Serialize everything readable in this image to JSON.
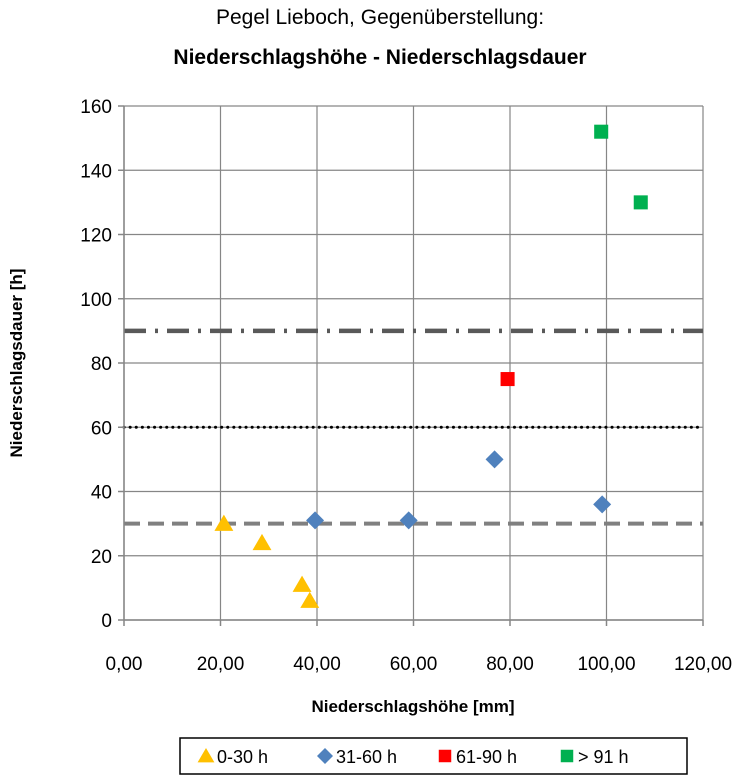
{
  "chart_data": {
    "type": "scatter",
    "title": "Pegel Lieboch, Gegenüberstellung:",
    "subtitle": "Niederschlagshöhe - Niederschlagsdauer",
    "xlabel": "Niederschlagshöhe [mm]",
    "ylabel": "Niederschlagsdauer [h]",
    "xlim": [
      0,
      120
    ],
    "ylim": [
      0,
      160
    ],
    "x_ticks": [
      "0,00",
      "20,00",
      "40,00",
      "60,00",
      "80,00",
      "100,00",
      "120,00"
    ],
    "y_ticks": [
      "0",
      "20",
      "40",
      "60",
      "80",
      "100",
      "120",
      "140",
      "160"
    ],
    "grid": true,
    "legend_position": "bottom",
    "series": [
      {
        "name": "0-30 h",
        "marker": "triangle",
        "color": "#FFC000",
        "points": [
          [
            20.7,
            30
          ],
          [
            28.6,
            24
          ],
          [
            36.9,
            11
          ],
          [
            38.5,
            6
          ]
        ]
      },
      {
        "name": "31-60 h",
        "marker": "diamond",
        "color": "#4F81BD",
        "points": [
          [
            39.6,
            31
          ],
          [
            59.0,
            31
          ],
          [
            76.8,
            50
          ],
          [
            99.1,
            36
          ]
        ]
      },
      {
        "name": "61-90 h",
        "marker": "square",
        "color": "#FF0000",
        "points": [
          [
            79.5,
            75
          ]
        ]
      },
      {
        "name": "> 91 h",
        "marker": "square",
        "color": "#00B050",
        "points": [
          [
            98.9,
            152
          ],
          [
            107.1,
            130
          ]
        ]
      }
    ],
    "reference_lines": [
      {
        "y": 30,
        "style": "dashed",
        "color": "#808080"
      },
      {
        "y": 60,
        "style": "dotted",
        "color": "#000000"
      },
      {
        "y": 90,
        "style": "dash-dot",
        "color": "#595959"
      }
    ]
  }
}
